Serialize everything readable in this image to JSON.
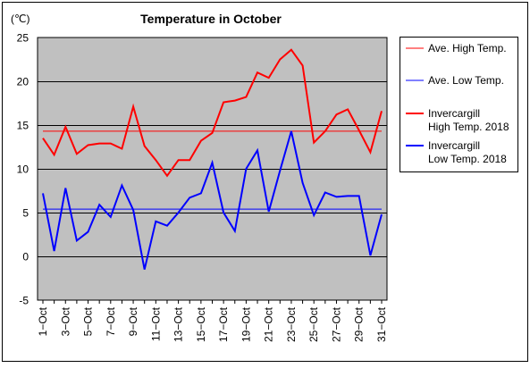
{
  "chart_data": {
    "type": "line",
    "title": "Temperature in October",
    "unit_label": "(℃)",
    "xlabel": "",
    "ylabel": "",
    "ylim": [
      -5,
      25
    ],
    "yticks": [
      -5,
      0,
      5,
      10,
      15,
      20,
      25
    ],
    "grid": true,
    "legend_position": "right",
    "x": [
      "1-Oct",
      "2-Oct",
      "3-Oct",
      "4-Oct",
      "5-Oct",
      "6-Oct",
      "7-Oct",
      "8-Oct",
      "9-Oct",
      "10-Oct",
      "11-Oct",
      "12-Oct",
      "13-Oct",
      "14-Oct",
      "15-Oct",
      "16-Oct",
      "17-Oct",
      "18-Oct",
      "19-Oct",
      "20-Oct",
      "21-Oct",
      "22-Oct",
      "23-Oct",
      "24-Oct",
      "25-Oct",
      "26-Oct",
      "27-Oct",
      "28-Oct",
      "29-Oct",
      "30-Oct",
      "31-Oct"
    ],
    "x_tick_labels": [
      "1−Oct",
      "3−Oct",
      "5−Oct",
      "7−Oct",
      "9−Oct",
      "11−Oct",
      "13−Oct",
      "15−Oct",
      "17−Oct",
      "19−Oct",
      "21−Oct",
      "23−Oct",
      "25−Oct",
      "27−Oct",
      "29−Oct",
      "31−Oct"
    ],
    "plot_background": "#c0c0c0",
    "series": [
      {
        "name": "Ave. High Temp.",
        "color": "#ff0000",
        "stroke": "thin",
        "values": [
          14.3,
          14.3,
          14.3,
          14.3,
          14.3,
          14.3,
          14.3,
          14.3,
          14.3,
          14.3,
          14.3,
          14.3,
          14.3,
          14.3,
          14.3,
          14.3,
          14.3,
          14.3,
          14.3,
          14.3,
          14.3,
          14.3,
          14.3,
          14.3,
          14.3,
          14.3,
          14.3,
          14.3,
          14.3,
          14.3,
          14.3
        ]
      },
      {
        "name": "Ave. Low Temp.",
        "color": "#0000ff",
        "stroke": "thin",
        "values": [
          5.4,
          5.4,
          5.4,
          5.4,
          5.4,
          5.4,
          5.4,
          5.4,
          5.4,
          5.4,
          5.4,
          5.4,
          5.4,
          5.4,
          5.4,
          5.4,
          5.4,
          5.4,
          5.4,
          5.4,
          5.4,
          5.4,
          5.4,
          5.4,
          5.4,
          5.4,
          5.4,
          5.4,
          5.4,
          5.4,
          5.4
        ]
      },
      {
        "name": "Invercargill High Temp. 2018",
        "legend_lines": [
          "Invercargill",
          "High Temp. 2018"
        ],
        "color": "#ff0000",
        "stroke": "thick",
        "values": [
          13.5,
          11.6,
          14.8,
          11.7,
          12.7,
          12.9,
          12.9,
          12.3,
          17.1,
          12.6,
          11.0,
          9.2,
          11.0,
          11.0,
          13.2,
          14.1,
          17.6,
          17.8,
          18.2,
          21.0,
          20.4,
          22.5,
          23.6,
          21.8,
          13.0,
          14.3,
          16.2,
          16.8,
          14.4,
          11.9,
          16.6
        ]
      },
      {
        "name": "Invercargill Low Temp. 2018",
        "legend_lines": [
          "Invercargill",
          "Low Temp. 2018"
        ],
        "color": "#0000ff",
        "stroke": "thick",
        "values": [
          7.2,
          0.6,
          7.8,
          1.8,
          2.8,
          5.9,
          4.5,
          8.1,
          5.3,
          -1.5,
          4.0,
          3.5,
          5.0,
          6.7,
          7.2,
          10.7,
          5.0,
          2.9,
          10.0,
          12.1,
          5.1,
          9.8,
          14.3,
          8.4,
          4.7,
          7.3,
          6.8,
          6.9,
          6.9,
          0.1,
          4.8
        ]
      }
    ]
  }
}
